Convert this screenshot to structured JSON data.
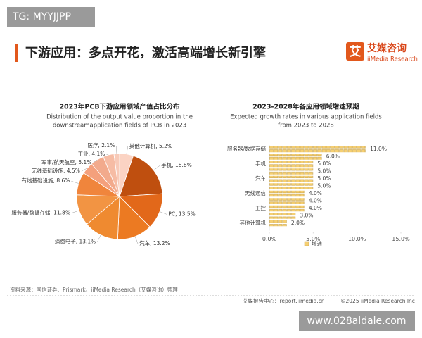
{
  "watermark_top": "TG: MYYJJPP",
  "header": {
    "title": "下游应用：多点开花，激活高端增长新引擎",
    "logo_mark": "艾",
    "logo_name": "艾媒咨询",
    "logo_sub": "iiMedia Research"
  },
  "chart_data": [
    {
      "type": "pie",
      "title": "2023年PCB下游应用领域产值占比分布",
      "subtitle": [
        "Distribution of the output value proportion in the",
        "downstreamapplication fields of PCB in 2023"
      ],
      "categories": [
        "其他计算机",
        "手机",
        "PC",
        "汽车",
        "消费电子",
        "服务器/数据存储",
        "有线基础设施",
        "无线基础设施",
        "军事/航天航空",
        "工业",
        "医疗"
      ],
      "values": [
        5.2,
        18.8,
        13.5,
        13.2,
        13.1,
        11.8,
        8.6,
        4.5,
        5.1,
        4.1,
        2.1
      ],
      "value_labels": [
        "5.2%",
        "18.8%",
        "13.5%",
        "13.2%",
        "13.1%",
        "11.8%",
        "8.6%",
        "4.5%",
        "5.1%",
        "4.1%",
        "2.1%"
      ],
      "label_separator": ", ",
      "colors": [
        "#fbd3c3",
        "#bf4f0f",
        "#e2681a",
        "#ec7a22",
        "#ef8a30",
        "#f29443",
        "#f0853c",
        "#f4a07c",
        "#f2aa8c",
        "#f6bca4",
        "#f8cab8"
      ]
    },
    {
      "type": "bar",
      "orientation": "horizontal",
      "title": "2023-2028年各应用领域增速预期",
      "subtitle": [
        "Expected growth rates in various application fields",
        "from 2023 to 2028"
      ],
      "categories": [
        "服务器/数据存储",
        null,
        "手机",
        null,
        "汽车",
        null,
        "无线通信",
        null,
        "工控",
        null,
        "其他计算机"
      ],
      "series": [
        {
          "name": "增速",
          "color": "#f5cf72",
          "values": [
            11.0,
            6.0,
            5.0,
            5.0,
            5.0,
            5.0,
            4.0,
            4.0,
            4.0,
            3.0,
            2.0
          ],
          "value_labels": [
            "11.0%",
            "6.0%",
            "5.0%",
            "5.0%",
            "5.0%",
            "5.0%",
            "4.0%",
            "4.0%",
            "4.0%",
            "3.0%",
            "2.0%"
          ]
        }
      ],
      "xlim": [
        0,
        15
      ],
      "xticks": [
        {
          "value": 0,
          "label": "0.0%"
        },
        {
          "value": 5,
          "label": "5.0%"
        },
        {
          "value": 10,
          "label": "10.0%"
        },
        {
          "value": 15,
          "label": "15.0%"
        }
      ]
    }
  ],
  "footer": {
    "source": "资料来源：国信证券、Prismark、iiMedia Research（艾媒咨询）整理",
    "report_center": "艾媒报告中心：report.iimedia.cn",
    "copyright": "©2025  iiMedia Research  Inc"
  },
  "watermark_bottom": "www.028aldale.com"
}
